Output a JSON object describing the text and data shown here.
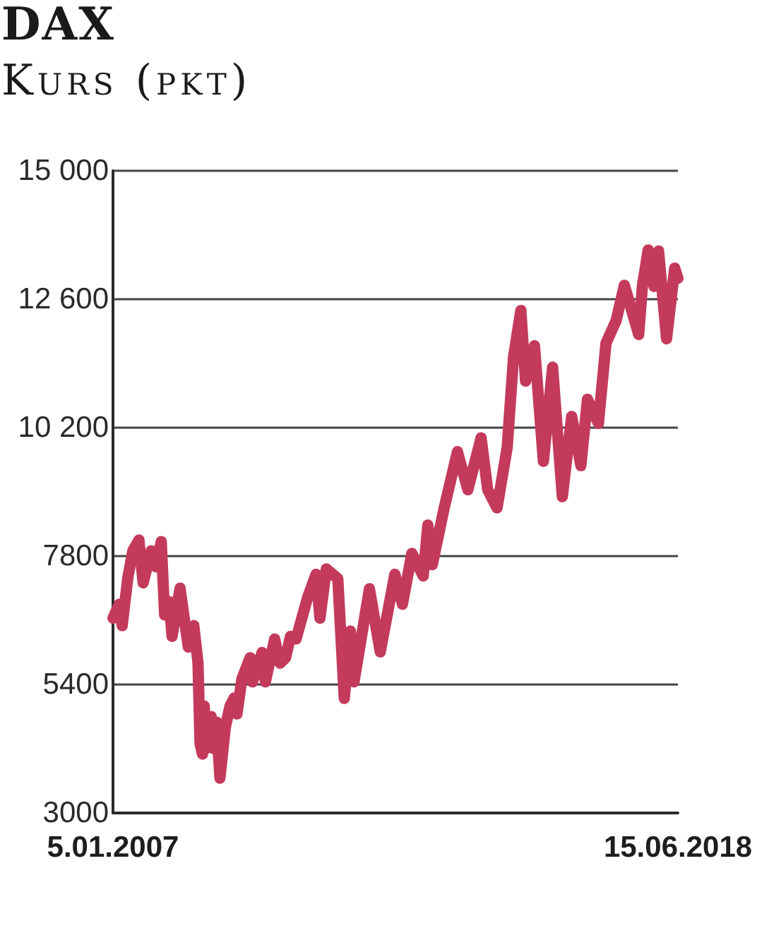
{
  "chart_data": {
    "type": "line",
    "title": "DAX",
    "subtitle": "Kurs (pkt)",
    "x": [
      "2007-01-05",
      "2007-02-20",
      "2007-03-14",
      "2007-04-25",
      "2007-06-01",
      "2007-07-16",
      "2007-08-16",
      "2007-09-10",
      "2007-10-15",
      "2007-11-20",
      "2007-12-28",
      "2008-01-22",
      "2008-02-25",
      "2008-03-17",
      "2008-05-15",
      "2008-06-20",
      "2008-07-15",
      "2008-08-25",
      "2008-09-25",
      "2008-10-10",
      "2008-10-28",
      "2008-11-10",
      "2008-11-21",
      "2008-12-31",
      "2009-01-20",
      "2009-02-10",
      "2009-03-06",
      "2009-04-15",
      "2009-05-20",
      "2009-06-20",
      "2009-07-10",
      "2009-08-15",
      "2009-10-15",
      "2009-11-02",
      "2010-01-12",
      "2010-02-05",
      "2010-04-15",
      "2010-05-25",
      "2010-07-05",
      "2010-08-10",
      "2010-09-20",
      "2010-12-15",
      "2011-02-15",
      "2011-03-16",
      "2011-05-02",
      "2011-07-26",
      "2011-09-12",
      "2011-10-27",
      "2011-11-23",
      "2012-03-16",
      "2012-06-04",
      "2012-09-20",
      "2012-11-15",
      "2013-01-24",
      "2013-04-18",
      "2013-05-22",
      "2013-06-24",
      "2013-09-20",
      "2013-12-27",
      "2014-03-14",
      "2014-06-20",
      "2014-08-08",
      "2014-10-16",
      "2014-12-30",
      "2015-02-15",
      "2015-04-10",
      "2015-05-15",
      "2015-07-20",
      "2015-09-24",
      "2015-12-01",
      "2016-02-11",
      "2016-04-20",
      "2016-06-27",
      "2016-08-15",
      "2016-11-04",
      "2016-12-30",
      "2017-03-15",
      "2017-05-15",
      "2017-08-29",
      "2017-09-25",
      "2017-11-07",
      "2017-12-20",
      "2018-01-23",
      "2018-03-23",
      "2018-05-22",
      "2018-06-15"
    ],
    "series": [
      {
        "color": "#c43a5b",
        "values": [
          6640,
          6900,
          6500,
          7400,
          7900,
          8100,
          7300,
          7550,
          7900,
          7600,
          8070,
          6700,
          6950,
          6300,
          7200,
          6550,
          6100,
          6500,
          5800,
          4300,
          4100,
          5000,
          4200,
          4800,
          4200,
          4700,
          3650,
          4600,
          5000,
          5150,
          4850,
          5500,
          5900,
          5450,
          6000,
          5450,
          6250,
          5800,
          5900,
          6300,
          6250,
          7030,
          7460,
          6640,
          7560,
          7380,
          5140,
          6400,
          5450,
          7190,
          6010,
          7460,
          6900,
          7850,
          7430,
          8380,
          7640,
          8700,
          9750,
          9040,
          10010,
          9040,
          8700,
          9830,
          11520,
          12390,
          11070,
          11730,
          9570,
          11330,
          8910,
          10410,
          9490,
          10730,
          10280,
          11780,
          12200,
          12860,
          11940,
          12840,
          13520,
          12840,
          13500,
          11860,
          13180,
          12990
        ]
      }
    ],
    "xlim": [
      "2007-01-05",
      "2018-06-15"
    ],
    "xticks": [
      {
        "value": "2007-01-05",
        "label": "5.01.2007"
      },
      {
        "value": "2018-06-15",
        "label": "15.06.2018"
      }
    ],
    "ylim": [
      3000,
      15000
    ],
    "yticks": [
      3000,
      5400,
      7800,
      {
        "value": 10200,
        "label": "10 200"
      },
      {
        "value": 12600,
        "label": "12 600"
      },
      {
        "value": 15000,
        "label": "15 000"
      }
    ],
    "grid": "y",
    "line_style": "solid"
  }
}
